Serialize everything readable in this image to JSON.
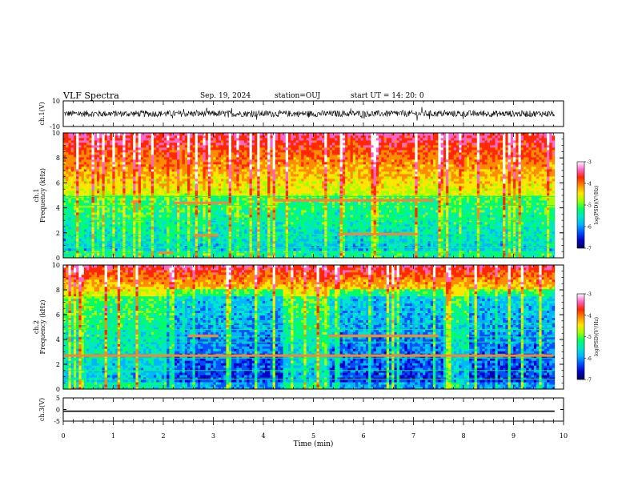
{
  "header": {
    "title": "VLF Spectra",
    "date": "Sep. 19, 2024",
    "station": "station=OUJ",
    "start": "start  UT  =   14: 20: 0"
  },
  "colors": {
    "cmap": [
      "#000050",
      "#0000c8",
      "#0050ff",
      "#00b4ff",
      "#00e6c8",
      "#00ff64",
      "#a0ff00",
      "#ffe600",
      "#ff8c00",
      "#ff2800",
      "#ff64c8",
      "#ffffff"
    ],
    "trace": "#000000"
  },
  "chart_data": [
    {
      "type": "line",
      "ylabel": "ch.1(V)",
      "ylim": [
        -10,
        10
      ],
      "y_ticks": [
        "10",
        "-10"
      ],
      "xlim": [
        0,
        10
      ],
      "series": [
        {
          "name": "ch.1",
          "baseline": 0,
          "noise_amplitude": 2.5
        }
      ]
    },
    {
      "type": "heatmap",
      "ylabel_channel": "ch.1",
      "ylabel": "Frequency (kHz)",
      "ylim": [
        0,
        10
      ],
      "y_ticks": [
        "0",
        "2",
        "4",
        "6",
        "8",
        "10"
      ],
      "xlim": [
        0,
        10
      ],
      "data_end_min": 9.82,
      "colorbar": {
        "label": "log(PSD)(V²/Hz)",
        "range": [
          -7,
          -3
        ],
        "ticks": [
          "-3",
          "-4",
          "-5",
          "-6",
          "-7"
        ]
      },
      "noise_floor_kHz": 5.0,
      "tones_kHz": [
        0.4,
        0.8,
        1.2,
        1.6,
        1.9,
        2.5,
        3.0,
        3.2,
        4.2,
        4.9
      ],
      "strong_bursts": [
        {
          "t_start": 1.35,
          "t_end": 1.5,
          "f_kHz": 4.5
        },
        {
          "t_start": 2.2,
          "t_end": 3.3,
          "f_kHz": 4.4
        },
        {
          "t_start": 2.6,
          "t_end": 3.1,
          "f_kHz": 1.8
        },
        {
          "t_start": 4.2,
          "t_end": 7.4,
          "f_kHz": 4.6
        },
        {
          "t_start": 5.5,
          "t_end": 7.1,
          "f_kHz": 1.9
        },
        {
          "t_start": 1.9,
          "t_end": 2.2,
          "f_kHz": 0.4
        }
      ]
    },
    {
      "type": "heatmap",
      "ylabel_channel": "ch.2",
      "ylabel": "Frequency (kHz)",
      "ylim": [
        0,
        10
      ],
      "y_ticks": [
        "0",
        "2",
        "4",
        "6",
        "8",
        "10"
      ],
      "xlim": [
        0,
        10
      ],
      "data_end_min": 9.82,
      "colorbar": {
        "label": "log(PSD)(V²/Hz)",
        "range": [
          -7,
          -3
        ],
        "ticks": [
          "-3",
          "-4",
          "-5",
          "-6",
          "-7"
        ]
      },
      "noise_floor_kHz": 7.5,
      "tones_kHz": [
        0.8,
        1.5,
        2.5,
        3.8,
        4.2,
        4.8,
        5.3
      ],
      "strong_bursts": [
        {
          "t_start": 2.5,
          "t_end": 3.1,
          "f_kHz": 4.3
        },
        {
          "t_start": 5.3,
          "t_end": 7.5,
          "f_kHz": 4.3
        },
        {
          "t_start": 0.0,
          "t_end": 9.8,
          "f_kHz": 2.7
        }
      ],
      "dark_intervals": [
        {
          "t_start": 2.05,
          "t_end": 4.4
        },
        {
          "t_start": 5.3,
          "t_end": 7.6
        },
        {
          "t_start": 8.1,
          "t_end": 9.8
        }
      ]
    },
    {
      "type": "line",
      "ylabel": "ch.3(V)",
      "ylim": [
        -5,
        5
      ],
      "y_ticks": [
        "5",
        "0",
        "-5"
      ],
      "xlim": [
        0,
        10
      ],
      "xlabel": "Time  (min)",
      "x_ticks": [
        "0",
        "1",
        "2",
        "3",
        "4",
        "5",
        "6",
        "7",
        "8",
        "9",
        "10"
      ],
      "series": [
        {
          "name": "ch.3",
          "constant": -0.7
        }
      ]
    }
  ]
}
